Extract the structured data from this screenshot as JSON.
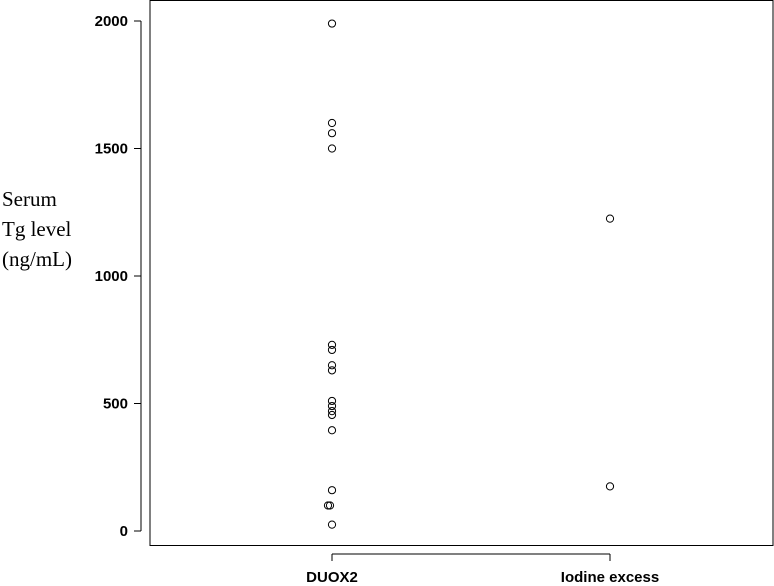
{
  "chart_data": {
    "type": "scatter",
    "title": "",
    "xlabel": "",
    "ylabel_lines": [
      "Serum",
      "Tg level",
      "(ng/mL)"
    ],
    "categories": [
      "DUOX2",
      "Iodine excess"
    ],
    "yticks": [
      0,
      500,
      1000,
      1500,
      2000
    ],
    "ylim": [
      -60,
      2050
    ],
    "grid": false,
    "legend": "none",
    "marker": "open-circle",
    "points": [
      {
        "category": "DUOX2",
        "y": 1990
      },
      {
        "category": "DUOX2",
        "y": 1600
      },
      {
        "category": "DUOX2",
        "y": 1560
      },
      {
        "category": "DUOX2",
        "y": 1500
      },
      {
        "category": "DUOX2",
        "y": 730
      },
      {
        "category": "DUOX2",
        "y": 710
      },
      {
        "category": "DUOX2",
        "y": 650
      },
      {
        "category": "DUOX2",
        "y": 630
      },
      {
        "category": "DUOX2",
        "y": 510
      },
      {
        "category": "DUOX2",
        "y": 490
      },
      {
        "category": "DUOX2",
        "y": 470
      },
      {
        "category": "DUOX2",
        "y": 455
      },
      {
        "category": "DUOX2",
        "y": 395
      },
      {
        "category": "DUOX2",
        "y": 160
      },
      {
        "category": "DUOX2",
        "y": 100
      },
      {
        "category": "DUOX2",
        "y": 100
      },
      {
        "category": "DUOX2",
        "y": 25
      },
      {
        "category": "Iodine excess",
        "y": 1225
      },
      {
        "category": "Iodine excess",
        "y": 175
      }
    ]
  }
}
